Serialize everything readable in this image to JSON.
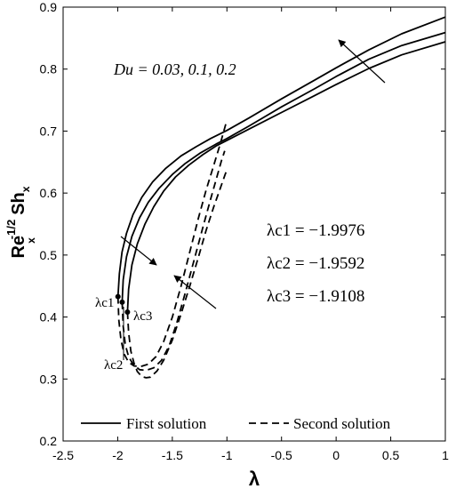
{
  "chart_data": {
    "type": "line",
    "xlabel": "λ",
    "ylabel": "Re",
    "ylabel_sup": "-1/2",
    "ylabel_rest": "Sh",
    "xlim": [
      -2.5,
      1
    ],
    "ylim": [
      0.2,
      0.9
    ],
    "xticks": [
      -2.5,
      -2,
      -1.5,
      -1,
      -0.5,
      0,
      0.5,
      1
    ],
    "xtick_labels": [
      "-2.5",
      "-2",
      "-1.5",
      "-1",
      "-0.5",
      "0",
      "0.5",
      "1"
    ],
    "yticks": [
      0.2,
      0.3,
      0.4,
      0.5,
      0.6,
      0.7,
      0.8,
      0.9
    ],
    "ytick_labels": [
      "0.2",
      "0.3",
      "0.4",
      "0.5",
      "0.6",
      "0.7",
      "0.8",
      "0.9"
    ],
    "grid": false,
    "legend": {
      "placement": "bottom",
      "entries": [
        {
          "label": "First solution",
          "style": "solid"
        },
        {
          "label": "Second solution",
          "style": "dashed"
        }
      ]
    },
    "annotations": {
      "du_text": "Du = 0.03, 0.1, 0.2",
      "lambda_c1": "λc1 = −1.9976",
      "lambda_c2": "λc2 = −1.9592",
      "lambda_c3": "λc3 = −1.9108",
      "point_labels": [
        "λc1",
        "λc2",
        "λc3"
      ]
    },
    "critical_points": [
      {
        "x": -1.9976,
        "y": 0.433
      },
      {
        "x": -1.9592,
        "y": 0.424
      },
      {
        "x": -1.9108,
        "y": 0.408
      }
    ],
    "series": [
      {
        "style": "solid",
        "x": [
          -1.9976,
          -1.985,
          -1.96,
          -1.92,
          -1.86,
          -1.78,
          -1.68,
          -1.56,
          -1.42,
          -1.28,
          -1.15,
          -1.0,
          -0.8,
          -0.5,
          -0.2,
          0.0,
          0.3,
          0.6,
          1.0
        ],
        "y": [
          0.433,
          0.47,
          0.505,
          0.535,
          0.565,
          0.593,
          0.618,
          0.64,
          0.66,
          0.675,
          0.688,
          0.701,
          0.721,
          0.752,
          0.782,
          0.802,
          0.831,
          0.857,
          0.884
        ]
      },
      {
        "style": "solid",
        "x": [
          -1.9592,
          -1.95,
          -1.92,
          -1.87,
          -1.8,
          -1.72,
          -1.62,
          -1.5,
          -1.38,
          -1.24,
          -1.1,
          -1.0,
          -0.8,
          -0.5,
          -0.2,
          0.0,
          0.3,
          0.6,
          1.0
        ],
        "y": [
          0.424,
          0.46,
          0.497,
          0.53,
          0.56,
          0.585,
          0.608,
          0.63,
          0.648,
          0.665,
          0.679,
          0.688,
          0.708,
          0.739,
          0.768,
          0.788,
          0.816,
          0.838,
          0.859
        ]
      },
      {
        "style": "solid",
        "x": [
          -1.9108,
          -1.9,
          -1.87,
          -1.82,
          -1.75,
          -1.67,
          -1.58,
          -1.47,
          -1.35,
          -1.22,
          -1.1,
          -1.0,
          -0.8,
          -0.5,
          -0.2,
          0.0,
          0.3,
          0.6,
          1.0
        ],
        "y": [
          0.408,
          0.445,
          0.484,
          0.518,
          0.55,
          0.578,
          0.603,
          0.626,
          0.645,
          0.662,
          0.676,
          0.685,
          0.703,
          0.73,
          0.757,
          0.775,
          0.801,
          0.823,
          0.844
        ]
      },
      {
        "style": "dashed",
        "x": [
          -1.9976,
          -1.99,
          -1.97,
          -1.94,
          -1.9,
          -1.85,
          -1.79,
          -1.72,
          -1.65,
          -1.58,
          -1.5,
          -1.42,
          -1.34,
          -1.26,
          -1.19,
          -1.12,
          -1.06,
          -1.02,
          -1.0
        ],
        "y": [
          0.433,
          0.395,
          0.363,
          0.34,
          0.327,
          0.321,
          0.32,
          0.324,
          0.336,
          0.36,
          0.4,
          0.45,
          0.505,
          0.56,
          0.605,
          0.645,
          0.68,
          0.705,
          0.718
        ]
      },
      {
        "style": "dashed",
        "x": [
          -1.9592,
          -1.95,
          -1.93,
          -1.9,
          -1.86,
          -1.8,
          -1.74,
          -1.67,
          -1.6,
          -1.53,
          -1.46,
          -1.38,
          -1.3,
          -1.22,
          -1.15,
          -1.09,
          -1.05,
          -1.02
        ],
        "y": [
          0.424,
          0.385,
          0.355,
          0.336,
          0.324,
          0.315,
          0.314,
          0.318,
          0.33,
          0.353,
          0.39,
          0.44,
          0.492,
          0.545,
          0.59,
          0.627,
          0.652,
          0.668
        ]
      },
      {
        "style": "dashed",
        "x": [
          -1.9108,
          -1.9,
          -1.88,
          -1.85,
          -1.82,
          -1.78,
          -1.74,
          -1.7,
          -1.64,
          -1.58,
          -1.5,
          -1.42,
          -1.34,
          -1.26,
          -1.19,
          -1.12,
          -1.06,
          -1.02,
          -1.0
        ],
        "y": [
          0.408,
          0.375,
          0.345,
          0.325,
          0.312,
          0.304,
          0.302,
          0.303,
          0.313,
          0.33,
          0.363,
          0.405,
          0.45,
          0.497,
          0.54,
          0.578,
          0.608,
          0.628,
          0.638
        ]
      }
    ]
  }
}
